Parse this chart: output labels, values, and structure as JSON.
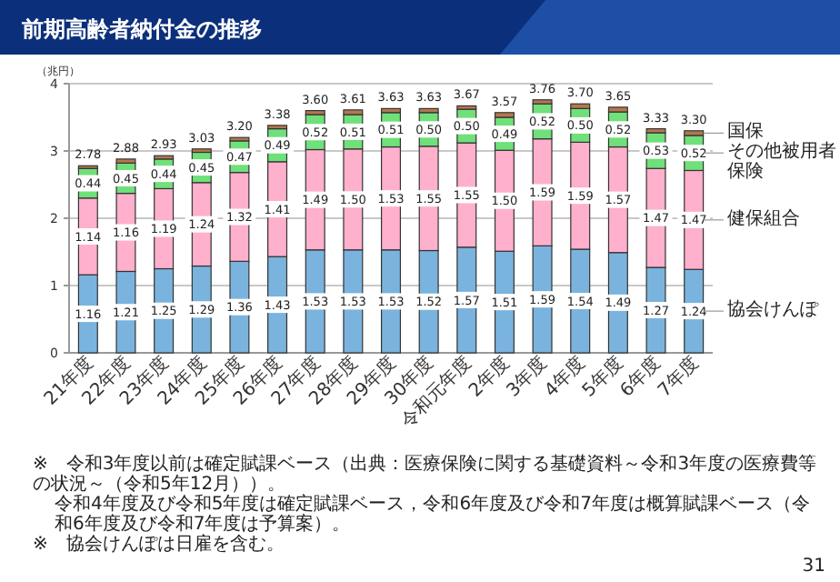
{
  "chart_data": {
    "type": "bar",
    "stacked": true,
    "title": "前期高齢者納付金の推移",
    "ylabel": "（兆円）",
    "categories": [
      "21年度",
      "22年度",
      "23年度",
      "24年度",
      "25年度",
      "26年度",
      "27年度",
      "28年度",
      "29年度",
      "30年度",
      "令和元年度",
      "2年度",
      "3年度",
      "4年度",
      "5年度",
      "6年度",
      "7年度"
    ],
    "ylim": [
      0,
      4
    ],
    "yticks": [
      0,
      1,
      2,
      3,
      4
    ],
    "grid": "y",
    "legend": "right",
    "series": [
      {
        "name": "協会けんぽ",
        "color": "#7ab4de",
        "values": [
          1.16,
          1.21,
          1.25,
          1.29,
          1.36,
          1.43,
          1.53,
          1.53,
          1.53,
          1.52,
          1.57,
          1.51,
          1.59,
          1.54,
          1.49,
          1.27,
          1.24
        ],
        "value_labels": [
          "1.16",
          "1.21",
          "1.25",
          "1.29",
          "1.36",
          "1.43",
          "1.53",
          "1.53",
          "1.53",
          "1.52",
          "1.57",
          "1.51",
          "1.59",
          "1.54",
          "1.49",
          "1.27",
          "1.24"
        ]
      },
      {
        "name": "健保組合",
        "color": "#ffb0cc",
        "values": [
          1.14,
          1.16,
          1.19,
          1.24,
          1.32,
          1.41,
          1.49,
          1.5,
          1.53,
          1.55,
          1.55,
          1.5,
          1.59,
          1.59,
          1.57,
          1.47,
          1.47
        ],
        "value_labels": [
          "1.14",
          "1.16",
          "1.19",
          "1.24",
          "1.32",
          "1.41",
          "1.49",
          "1.50",
          "1.53",
          "1.55",
          "1.55",
          "1.50",
          "1.59",
          "1.59",
          "1.57",
          "1.47",
          "1.47"
        ]
      },
      {
        "name": "その他被用者保険",
        "color": "#6fe07a",
        "values": [
          0.44,
          0.45,
          0.44,
          0.45,
          0.47,
          0.49,
          0.52,
          0.51,
          0.51,
          0.5,
          0.5,
          0.49,
          0.52,
          0.5,
          0.52,
          0.53,
          0.52
        ],
        "value_labels": [
          "0.44",
          "0.45",
          "0.44",
          "0.45",
          "0.47",
          "0.49",
          "0.52",
          "0.51",
          "0.51",
          "0.50",
          "0.50",
          "0.49",
          "0.52",
          "0.50",
          "0.52",
          "0.53",
          "0.52"
        ]
      },
      {
        "name": "国保",
        "color": "#b5764f",
        "values": [
          0.04,
          0.06,
          0.05,
          0.05,
          0.05,
          0.05,
          0.06,
          0.07,
          0.06,
          0.06,
          0.05,
          0.07,
          0.06,
          0.07,
          0.07,
          0.06,
          0.07
        ]
      }
    ],
    "totals": [
      "2.78",
      "2.88",
      "2.93",
      "3.03",
      "3.20",
      "3.38",
      "3.60",
      "3.61",
      "3.63",
      "3.63",
      "3.67",
      "3.57",
      "3.76",
      "3.70",
      "3.65",
      "3.33",
      "3.30"
    ],
    "annotations": [
      "※　令和3年度以前は確定賦課ベース（出典：医療保険に関する基礎資料～令和3年度の医療費等の状況～（令和5年12月））。",
      "令和4年度及び令和5年度は確定賦課ベース，令和6年度及び令和7年度は概算賦課ベース（令和6年度及び令和7年度は予算案）。",
      "※　協会けんぽは日雇を含む。",
      "31"
    ]
  }
}
